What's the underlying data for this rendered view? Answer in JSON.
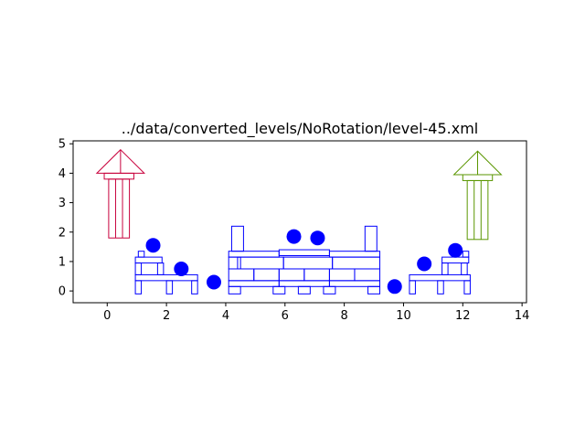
{
  "chart_data": {
    "type": "scatter",
    "title": "../data/converted_levels/NoRotation/level-45.xml",
    "xlabel": "",
    "ylabel": "",
    "xlim": [
      -1.15,
      14.15
    ],
    "ylim": [
      -0.4,
      5.1
    ],
    "x_ticks": [
      0,
      2,
      4,
      6,
      8,
      10,
      12,
      14
    ],
    "y_ticks": [
      0,
      1,
      2,
      3,
      4,
      5
    ],
    "grid": false,
    "colors": {
      "blocks": "#0000ff",
      "points": "#0000ff",
      "left_arrow": "#c8003c",
      "right_arrow": "#5a9600"
    },
    "points": [
      {
        "x": 1.55,
        "y": 1.55
      },
      {
        "x": 2.5,
        "y": 0.75
      },
      {
        "x": 3.6,
        "y": 0.3
      },
      {
        "x": 6.3,
        "y": 1.85
      },
      {
        "x": 7.1,
        "y": 1.8
      },
      {
        "x": 9.7,
        "y": 0.15
      },
      {
        "x": 10.7,
        "y": 0.92
      },
      {
        "x": 11.75,
        "y": 1.38
      }
    ],
    "blocks": [
      {
        "x0": 0.95,
        "x1": 1.15,
        "y0": -0.1,
        "y1": 0.35
      },
      {
        "x0": 2.0,
        "x1": 2.2,
        "y0": -0.1,
        "y1": 0.35
      },
      {
        "x0": 2.85,
        "x1": 3.05,
        "y0": -0.1,
        "y1": 0.35
      },
      {
        "x0": 0.95,
        "x1": 3.05,
        "y0": 0.35,
        "y1": 0.55
      },
      {
        "x0": 0.95,
        "x1": 1.15,
        "y0": 0.55,
        "y1": 0.95
      },
      {
        "x0": 1.7,
        "x1": 1.9,
        "y0": 0.55,
        "y1": 0.95
      },
      {
        "x0": 0.95,
        "x1": 1.85,
        "y0": 0.95,
        "y1": 1.15
      },
      {
        "x0": 1.05,
        "x1": 1.25,
        "y0": 1.15,
        "y1": 1.35
      },
      {
        "x0": 4.1,
        "x1": 4.5,
        "y0": -0.1,
        "y1": 0.15
      },
      {
        "x0": 5.6,
        "x1": 6.0,
        "y0": -0.1,
        "y1": 0.15
      },
      {
        "x0": 6.45,
        "x1": 6.85,
        "y0": -0.1,
        "y1": 0.15
      },
      {
        "x0": 7.3,
        "x1": 7.7,
        "y0": -0.1,
        "y1": 0.15
      },
      {
        "x0": 8.8,
        "x1": 9.2,
        "y0": -0.1,
        "y1": 0.15
      },
      {
        "x0": 4.1,
        "x1": 5.8,
        "y0": 0.15,
        "y1": 0.35
      },
      {
        "x0": 5.8,
        "x1": 7.5,
        "y0": 0.15,
        "y1": 0.35
      },
      {
        "x0": 7.5,
        "x1": 9.2,
        "y0": 0.15,
        "y1": 0.35
      },
      {
        "x0": 4.1,
        "x1": 4.95,
        "y0": 0.35,
        "y1": 0.75
      },
      {
        "x0": 4.95,
        "x1": 5.8,
        "y0": 0.35,
        "y1": 0.75
      },
      {
        "x0": 5.8,
        "x1": 6.65,
        "y0": 0.35,
        "y1": 0.75
      },
      {
        "x0": 6.65,
        "x1": 7.5,
        "y0": 0.35,
        "y1": 0.75
      },
      {
        "x0": 7.5,
        "x1": 8.35,
        "y0": 0.35,
        "y1": 0.75
      },
      {
        "x0": 8.35,
        "x1": 9.2,
        "y0": 0.35,
        "y1": 0.75
      },
      {
        "x0": 4.1,
        "x1": 5.95,
        "y0": 0.75,
        "y1": 1.15
      },
      {
        "x0": 5.95,
        "x1": 7.6,
        "y0": 0.75,
        "y1": 1.15
      },
      {
        "x0": 7.6,
        "x1": 9.2,
        "y0": 0.75,
        "y1": 1.15
      },
      {
        "x0": 4.4,
        "x1": 4.5,
        "y0": 0.75,
        "y1": 1.15
      },
      {
        "x0": 4.1,
        "x1": 5.8,
        "y0": 1.15,
        "y1": 1.35
      },
      {
        "x0": 5.8,
        "x1": 7.5,
        "y0": 1.2,
        "y1": 1.4
      },
      {
        "x0": 7.5,
        "x1": 9.2,
        "y0": 1.15,
        "y1": 1.35
      },
      {
        "x0": 4.2,
        "x1": 4.6,
        "y0": 1.35,
        "y1": 2.2
      },
      {
        "x0": 8.7,
        "x1": 9.1,
        "y0": 1.35,
        "y1": 2.2
      },
      {
        "x0": 10.2,
        "x1": 10.4,
        "y0": -0.1,
        "y1": 0.35
      },
      {
        "x0": 11.15,
        "x1": 11.35,
        "y0": -0.1,
        "y1": 0.35
      },
      {
        "x0": 12.05,
        "x1": 12.25,
        "y0": -0.1,
        "y1": 0.35
      },
      {
        "x0": 10.2,
        "x1": 12.25,
        "y0": 0.35,
        "y1": 0.55
      },
      {
        "x0": 11.3,
        "x1": 11.5,
        "y0": 0.55,
        "y1": 0.95
      },
      {
        "x0": 11.95,
        "x1": 12.15,
        "y0": 0.55,
        "y1": 0.95
      },
      {
        "x0": 11.3,
        "x1": 12.2,
        "y0": 0.95,
        "y1": 1.15
      },
      {
        "x0": 12.0,
        "x1": 12.2,
        "y0": 1.15,
        "y1": 1.35
      }
    ],
    "arrows": [
      {
        "color_key": "left_arrow",
        "x0": 0.05,
        "x1": 0.75,
        "y_bottom": 1.8,
        "y_shaft_top": 3.8,
        "cap_y0": 3.8,
        "cap_y1": 4.0,
        "head_base": 4.0,
        "head_tip": 4.8,
        "head_x0": -0.35,
        "head_x1": 1.25
      },
      {
        "color_key": "right_arrow",
        "x0": 12.15,
        "x1": 12.85,
        "y_bottom": 1.75,
        "y_shaft_top": 3.75,
        "cap_y0": 3.75,
        "cap_y1": 3.95,
        "head_base": 3.95,
        "head_tip": 4.75,
        "head_x0": 11.7,
        "head_x1": 13.3
      }
    ]
  }
}
